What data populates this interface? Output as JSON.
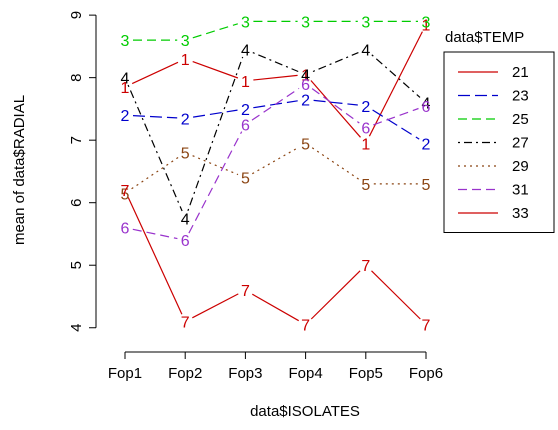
{
  "chart_data": {
    "type": "line",
    "title": "",
    "xlabel": "data$ISOLATES",
    "ylabel": "mean of  data$RADIAL",
    "categories": [
      "Fop1",
      "Fop2",
      "Fop3",
      "Fop4",
      "Fop5",
      "Fop6"
    ],
    "ylim": [
      3.9,
      9.05
    ],
    "yticks": [
      4,
      5,
      6,
      7,
      8,
      9
    ],
    "legend_title": "data$TEMP",
    "legend_position": "right",
    "series": [
      {
        "name": "21",
        "label": "1",
        "color": "#cc0000",
        "dash": "solid",
        "values": [
          7.85,
          8.3,
          7.95,
          8.05,
          6.95,
          8.85
        ]
      },
      {
        "name": "23",
        "label": "2",
        "color": "#0000cc",
        "dash": "longdash",
        "values": [
          7.4,
          7.35,
          7.5,
          7.65,
          7.55,
          6.95
        ]
      },
      {
        "name": "25",
        "label": "3",
        "color": "#00cc00",
        "dash": "dashed",
        "values": [
          8.6,
          8.6,
          8.9,
          8.9,
          8.9,
          8.9
        ]
      },
      {
        "name": "27",
        "label": "4",
        "color": "#000000",
        "dash": "dotdash",
        "values": [
          8.0,
          5.75,
          8.45,
          8.05,
          8.45,
          7.6
        ]
      },
      {
        "name": "29",
        "label": "5",
        "color": "#8b4513",
        "dash": "dotted",
        "values": [
          6.15,
          6.8,
          6.4,
          6.95,
          6.3,
          6.3
        ]
      },
      {
        "name": "31",
        "label": "6",
        "color": "#9933cc",
        "dash": "dashed",
        "values": [
          5.6,
          5.4,
          7.25,
          7.9,
          7.2,
          7.55
        ]
      },
      {
        "name": "33",
        "label": "7",
        "color": "#cc0000",
        "dash": "solid",
        "values": [
          6.2,
          4.1,
          4.6,
          4.05,
          5.0,
          4.05
        ]
      }
    ]
  }
}
